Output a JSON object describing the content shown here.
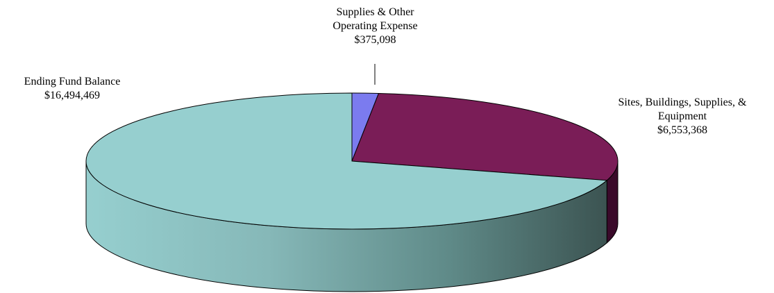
{
  "chart_data": {
    "type": "pie",
    "style": "3d",
    "slices": [
      {
        "label_lines": [
          "Supplies & Other",
          "Operating Expense"
        ],
        "value_text": "$375,098",
        "value": 375098,
        "color": "#7b7bef"
      },
      {
        "label_lines": [
          "Sites, Buildings, Supplies, &",
          "Equipment"
        ],
        "value_text": "$6,553,368",
        "value": 6553368,
        "color": "#7a1d57"
      },
      {
        "label_lines": [
          "Ending Fund Balance"
        ],
        "value_text": "$16,494,469",
        "value": 16494469,
        "color": "#96cfcf"
      }
    ]
  }
}
